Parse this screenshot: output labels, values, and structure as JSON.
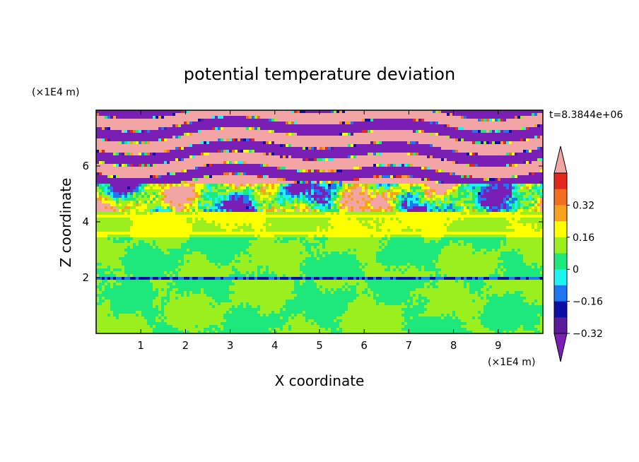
{
  "chart_data": {
    "type": "heatmap",
    "title": "potential temperature deviation",
    "xlabel": "X coordinate",
    "ylabel": "Z coordinate",
    "x_unit": "(×1E4 m)",
    "y_unit": "(×1E4 m)",
    "time_label": "t=8.3844e+06",
    "xlim": [
      0,
      10
    ],
    "ylim": [
      0,
      8
    ],
    "x_ticks": [
      "1",
      "2",
      "3",
      "4",
      "5",
      "6",
      "7",
      "8",
      "9"
    ],
    "y_ticks": [
      "2",
      "4",
      "6"
    ],
    "colorbar": {
      "levels": [
        -0.4,
        -0.32,
        -0.24,
        -0.16,
        -0.08,
        0,
        0.08,
        0.16,
        0.24,
        0.32,
        0.4
      ],
      "labels": [
        "0.32",
        "0.16",
        "0",
        "−0.16",
        "−0.32"
      ],
      "colors_top_to_bottom": [
        "#f3a5a5",
        "#e3261e",
        "#f36f1f",
        "#f7a11f",
        "#ffff00",
        "#9bef1e",
        "#1ee87b",
        "#1ef3f3",
        "#1f76f3",
        "#0d0da8",
        "#5a1a9a",
        "#7a1fb5"
      ]
    },
    "bands": [
      {
        "z_range": [
          0,
          2.0
        ],
        "dominant_value": 0.04,
        "secondary_value": -0.04
      },
      {
        "z_range": [
          2.0,
          3.4
        ],
        "dominant_value": -0.04,
        "secondary_value": 0.04
      },
      {
        "z_range": [
          3.4,
          4.4
        ],
        "dominant_value": 0.04,
        "secondary_value": 0.12
      },
      {
        "z_range": [
          4.4,
          5.4
        ],
        "dominant_value": 0.0,
        "secondary_value": 0.3
      },
      {
        "z_range": [
          5.4,
          8.0
        ],
        "dominant_value": 0.44,
        "secondary_value": -0.44
      }
    ]
  }
}
